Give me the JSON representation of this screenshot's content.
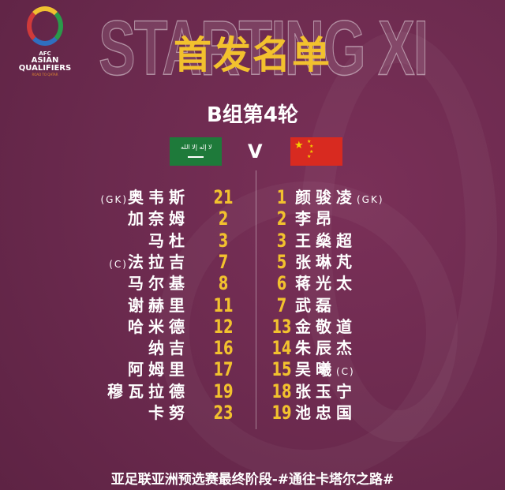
{
  "logo": {
    "line1": "AFC",
    "line2": "ASIAN",
    "line3": "QUALIFIERS",
    "line4": "ROAD TO QATAR"
  },
  "background_text": "STARTING XI",
  "title": "首发名单",
  "round": "B组第4轮",
  "vs": "V",
  "colors": {
    "background": "#6b2a4e",
    "accent": "#f2c12e"
  },
  "home": {
    "team_flag": "saudi-arabia",
    "players": [
      {
        "name": "奥韦斯",
        "number": "21",
        "tag": "(GK)"
      },
      {
        "name": "加奈姆",
        "number": "2",
        "tag": ""
      },
      {
        "name": "马杜",
        "number": "3",
        "tag": ""
      },
      {
        "name": "法拉吉",
        "number": "7",
        "tag": "(C)"
      },
      {
        "name": "马尔基",
        "number": "8",
        "tag": ""
      },
      {
        "name": "谢赫里",
        "number": "11",
        "tag": ""
      },
      {
        "name": "哈米德",
        "number": "12",
        "tag": ""
      },
      {
        "name": "纳吉",
        "number": "16",
        "tag": ""
      },
      {
        "name": "阿姆里",
        "number": "17",
        "tag": ""
      },
      {
        "name": "穆瓦拉德",
        "number": "19",
        "tag": ""
      },
      {
        "name": "卡努",
        "number": "23",
        "tag": ""
      }
    ]
  },
  "away": {
    "team_flag": "china",
    "players": [
      {
        "name": "颜骏凌",
        "number": "1",
        "tag": "(GK)"
      },
      {
        "name": "李昂",
        "number": "2",
        "tag": ""
      },
      {
        "name": "王燊超",
        "number": "3",
        "tag": ""
      },
      {
        "name": "张琳芃",
        "number": "5",
        "tag": ""
      },
      {
        "name": "蒋光太",
        "number": "6",
        "tag": ""
      },
      {
        "name": "武磊",
        "number": "7",
        "tag": ""
      },
      {
        "name": "金敬道",
        "number": "13",
        "tag": ""
      },
      {
        "name": "朱辰杰",
        "number": "14",
        "tag": ""
      },
      {
        "name": "吴曦",
        "number": "15",
        "tag": "(C)"
      },
      {
        "name": "张玉宁",
        "number": "18",
        "tag": ""
      },
      {
        "name": "池忠国",
        "number": "19",
        "tag": ""
      }
    ]
  },
  "footer": "亚足联亚洲预选赛最终阶段-#通往卡塔尔之路#"
}
